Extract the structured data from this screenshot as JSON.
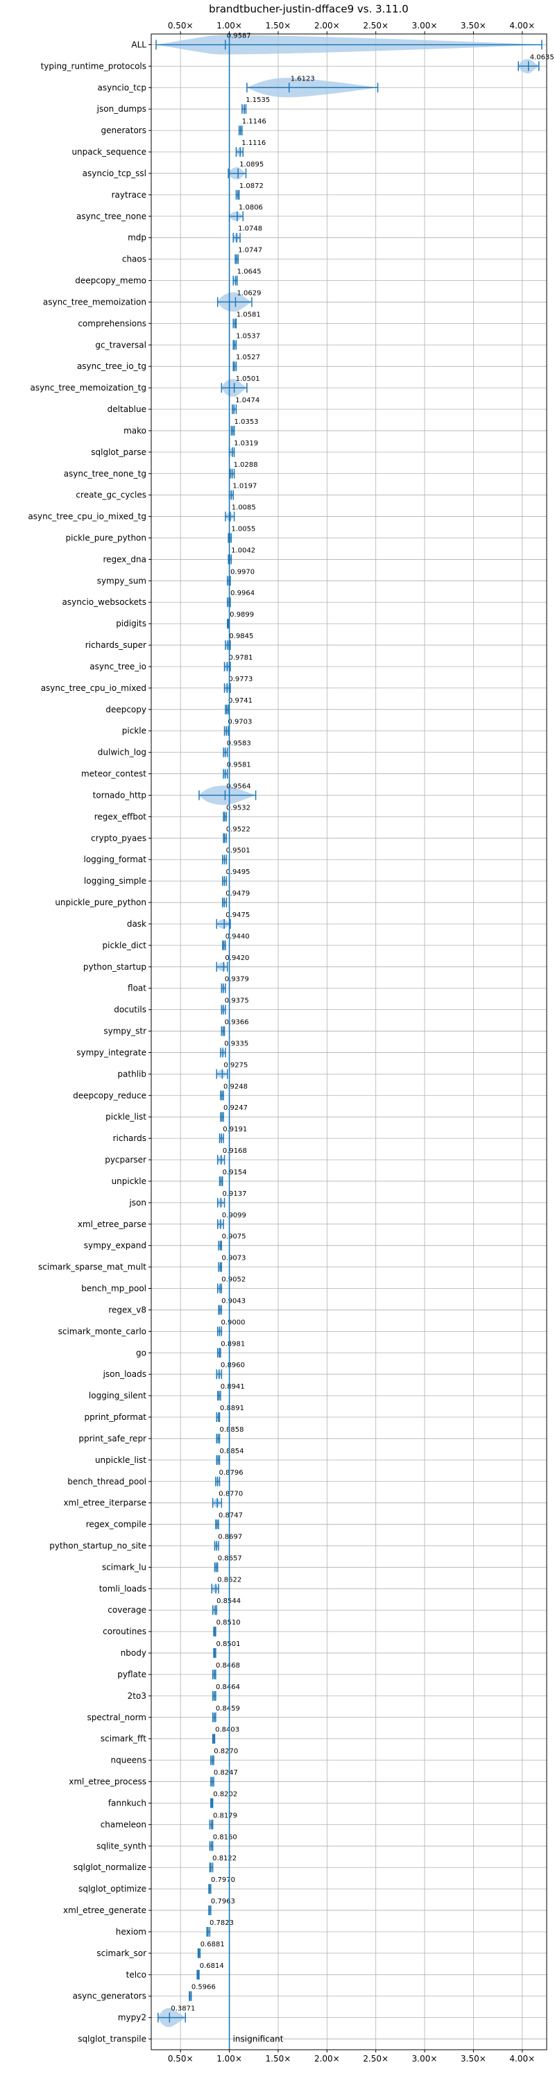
{
  "chart_data": {
    "type": "violin",
    "title": "brandtbucher-justin-dfface9 vs. 3.11.0",
    "xlim": [
      0.2,
      4.25
    ],
    "xticks": [
      0.5,
      1.0,
      1.5,
      2.0,
      2.5,
      3.0,
      3.5,
      4.0
    ],
    "xtick_labels": [
      "0.50×",
      "1.00×",
      "1.50×",
      "2.00×",
      "2.50×",
      "3.00×",
      "3.50×",
      "4.00×"
    ],
    "reference_line": 1.0,
    "grid": true,
    "colors": {
      "violin": "#a6c8e8",
      "marker": "#1f77b4",
      "grid": "#b0b0b0"
    },
    "categories": [
      "ALL",
      "typing_runtime_protocols",
      "asyncio_tcp",
      "json_dumps",
      "generators",
      "unpack_sequence",
      "asyncio_tcp_ssl",
      "raytrace",
      "async_tree_none",
      "mdp",
      "chaos",
      "deepcopy_memo",
      "async_tree_memoization",
      "comprehensions",
      "gc_traversal",
      "async_tree_io_tg",
      "async_tree_memoization_tg",
      "deltablue",
      "mako",
      "sqlglot_parse",
      "async_tree_none_tg",
      "create_gc_cycles",
      "async_tree_cpu_io_mixed_tg",
      "pickle_pure_python",
      "regex_dna",
      "sympy_sum",
      "asyncio_websockets",
      "pidigits",
      "richards_super",
      "async_tree_io",
      "async_tree_cpu_io_mixed",
      "deepcopy",
      "pickle",
      "dulwich_log",
      "meteor_contest",
      "tornado_http",
      "regex_effbot",
      "crypto_pyaes",
      "logging_format",
      "logging_simple",
      "unpickle_pure_python",
      "dask",
      "pickle_dict",
      "python_startup",
      "float",
      "docutils",
      "sympy_str",
      "sympy_integrate",
      "pathlib",
      "deepcopy_reduce",
      "pickle_list",
      "richards",
      "pycparser",
      "unpickle",
      "json",
      "xml_etree_parse",
      "sympy_expand",
      "scimark_sparse_mat_mult",
      "bench_mp_pool",
      "regex_v8",
      "scimark_monte_carlo",
      "go",
      "json_loads",
      "logging_silent",
      "pprint_pformat",
      "pprint_safe_repr",
      "unpickle_list",
      "bench_thread_pool",
      "xml_etree_iterparse",
      "regex_compile",
      "python_startup_no_site",
      "scimark_lu",
      "tomli_loads",
      "coverage",
      "coroutines",
      "nbody",
      "pyflate",
      "2to3",
      "spectral_norm",
      "scimark_fft",
      "nqueens",
      "xml_etree_process",
      "fannkuch",
      "chameleon",
      "sqlite_synth",
      "sqlglot_normalize",
      "sqlglot_optimize",
      "xml_etree_generate",
      "hexiom",
      "scimark_sor",
      "telco",
      "async_generators",
      "mypy2",
      "sqlglot_transpile"
    ],
    "values": [
      0.9587,
      4.0635,
      1.6123,
      1.1535,
      1.1146,
      1.1116,
      1.0895,
      1.0872,
      1.0806,
      1.0748,
      1.0747,
      1.0645,
      1.0629,
      1.0581,
      1.0537,
      1.0527,
      1.0501,
      1.0474,
      1.0353,
      1.0319,
      1.0288,
      1.0197,
      1.0085,
      1.0055,
      1.0042,
      0.997,
      0.9964,
      0.9899,
      0.9845,
      0.9781,
      0.9773,
      0.9741,
      0.9703,
      0.9583,
      0.9581,
      0.9564,
      0.9532,
      0.9522,
      0.9501,
      0.9495,
      0.9479,
      0.9475,
      0.944,
      0.942,
      0.9379,
      0.9375,
      0.9366,
      0.9335,
      0.9275,
      0.9248,
      0.9247,
      0.9191,
      0.9168,
      0.9154,
      0.9137,
      0.9099,
      0.9075,
      0.9073,
      0.9052,
      0.9043,
      0.9,
      0.8981,
      0.896,
      0.8941,
      0.8891,
      0.8858,
      0.8854,
      0.8796,
      0.877,
      0.8747,
      0.8697,
      0.8657,
      0.8622,
      0.8544,
      0.851,
      0.8501,
      0.8468,
      0.8464,
      0.8459,
      0.8403,
      0.827,
      0.8247,
      0.8202,
      0.8179,
      0.816,
      0.8122,
      0.797,
      0.7963,
      0.7823,
      0.6881,
      0.6814,
      0.5966,
      0.3871,
      null
    ],
    "value_labels": [
      "0.9587",
      "4.0635",
      "1.6123",
      "1.1535",
      "1.1146",
      "1.1116",
      "1.0895",
      "1.0872",
      "1.0806",
      "1.0748",
      "1.0747",
      "1.0645",
      "1.0629",
      "1.0581",
      "1.0537",
      "1.0527",
      "1.0501",
      "1.0474",
      "1.0353",
      "1.0319",
      "1.0288",
      "1.0197",
      "1.0085",
      "1.0055",
      "1.0042",
      "0.9970",
      "0.9964",
      "0.9899",
      "0.9845",
      "0.9781",
      "0.9773",
      "0.9741",
      "0.9703",
      "0.9583",
      "0.9581",
      "0.9564",
      "0.9532",
      "0.9522",
      "0.9501",
      "0.9495",
      "0.9479",
      "0.9475",
      "0.9440",
      "0.9420",
      "0.9379",
      "0.9375",
      "0.9366",
      "0.9335",
      "0.9275",
      "0.9248",
      "0.9247",
      "0.9191",
      "0.9168",
      "0.9154",
      "0.9137",
      "0.9099",
      "0.9075",
      "0.9073",
      "0.9052",
      "0.9043",
      "0.9000",
      "0.8981",
      "0.8960",
      "0.8941",
      "0.8891",
      "0.8858",
      "0.8854",
      "0.8796",
      "0.8770",
      "0.8747",
      "0.8697",
      "0.8657",
      "0.8622",
      "0.8544",
      "0.8510",
      "0.8501",
      "0.8468",
      "0.8464",
      "0.8459",
      "0.8403",
      "0.8270",
      "0.8247",
      "0.8202",
      "0.8179",
      "0.8160",
      "0.8122",
      "0.7970",
      "0.7963",
      "0.7823",
      "0.6881",
      "0.6814",
      "0.5966",
      "0.3871",
      "insignificant"
    ],
    "ranges": [
      [
        0.25,
        4.2
      ],
      [
        3.96,
        4.17
      ],
      [
        1.18,
        2.52
      ],
      [
        1.13,
        1.17
      ],
      [
        1.1,
        1.13
      ],
      [
        1.07,
        1.14
      ],
      [
        0.99,
        1.17
      ],
      [
        1.07,
        1.1
      ],
      [
        1.0,
        1.14
      ],
      [
        1.04,
        1.11
      ],
      [
        1.06,
        1.09
      ],
      [
        1.04,
        1.08
      ],
      [
        0.88,
        1.23
      ],
      [
        1.04,
        1.07
      ],
      [
        1.04,
        1.07
      ],
      [
        1.04,
        1.07
      ],
      [
        0.92,
        1.18
      ],
      [
        1.03,
        1.07
      ],
      [
        1.02,
        1.05
      ],
      [
        1.0,
        1.05
      ],
      [
        1.01,
        1.05
      ],
      [
        1.0,
        1.04
      ],
      [
        0.96,
        1.05
      ],
      [
        0.99,
        1.02
      ],
      [
        0.99,
        1.02
      ],
      [
        0.98,
        1.01
      ],
      [
        0.98,
        1.01
      ],
      [
        0.98,
        1.0
      ],
      [
        0.96,
        1.01
      ],
      [
        0.95,
        1.01
      ],
      [
        0.95,
        1.01
      ],
      [
        0.96,
        0.99
      ],
      [
        0.95,
        0.99
      ],
      [
        0.94,
        0.98
      ],
      [
        0.94,
        0.98
      ],
      [
        0.69,
        1.27
      ],
      [
        0.94,
        0.97
      ],
      [
        0.94,
        0.97
      ],
      [
        0.93,
        0.97
      ],
      [
        0.93,
        0.97
      ],
      [
        0.93,
        0.97
      ],
      [
        0.87,
        1.01
      ],
      [
        0.93,
        0.96
      ],
      [
        0.87,
        0.98
      ],
      [
        0.92,
        0.96
      ],
      [
        0.92,
        0.96
      ],
      [
        0.92,
        0.95
      ],
      [
        0.91,
        0.96
      ],
      [
        0.87,
        0.98
      ],
      [
        0.91,
        0.94
      ],
      [
        0.91,
        0.94
      ],
      [
        0.9,
        0.94
      ],
      [
        0.88,
        0.95
      ],
      [
        0.9,
        0.93
      ],
      [
        0.88,
        0.95
      ],
      [
        0.88,
        0.94
      ],
      [
        0.89,
        0.92
      ],
      [
        0.89,
        0.92
      ],
      [
        0.88,
        0.92
      ],
      [
        0.89,
        0.92
      ],
      [
        0.88,
        0.92
      ],
      [
        0.88,
        0.91
      ],
      [
        0.87,
        0.92
      ],
      [
        0.88,
        0.91
      ],
      [
        0.87,
        0.9
      ],
      [
        0.87,
        0.9
      ],
      [
        0.87,
        0.9
      ],
      [
        0.86,
        0.9
      ],
      [
        0.83,
        0.92
      ],
      [
        0.86,
        0.89
      ],
      [
        0.85,
        0.89
      ],
      [
        0.85,
        0.88
      ],
      [
        0.82,
        0.89
      ],
      [
        0.83,
        0.87
      ],
      [
        0.84,
        0.86
      ],
      [
        0.84,
        0.86
      ],
      [
        0.83,
        0.86
      ],
      [
        0.83,
        0.86
      ],
      [
        0.83,
        0.86
      ],
      [
        0.83,
        0.85
      ],
      [
        0.81,
        0.84
      ],
      [
        0.81,
        0.84
      ],
      [
        0.81,
        0.83
      ],
      [
        0.8,
        0.83
      ],
      [
        0.8,
        0.83
      ],
      [
        0.8,
        0.83
      ],
      [
        0.79,
        0.81
      ],
      [
        0.79,
        0.81
      ],
      [
        0.77,
        0.8
      ],
      [
        0.68,
        0.7
      ],
      [
        0.67,
        0.69
      ],
      [
        0.59,
        0.61
      ],
      [
        0.27,
        0.55
      ],
      null
    ]
  }
}
